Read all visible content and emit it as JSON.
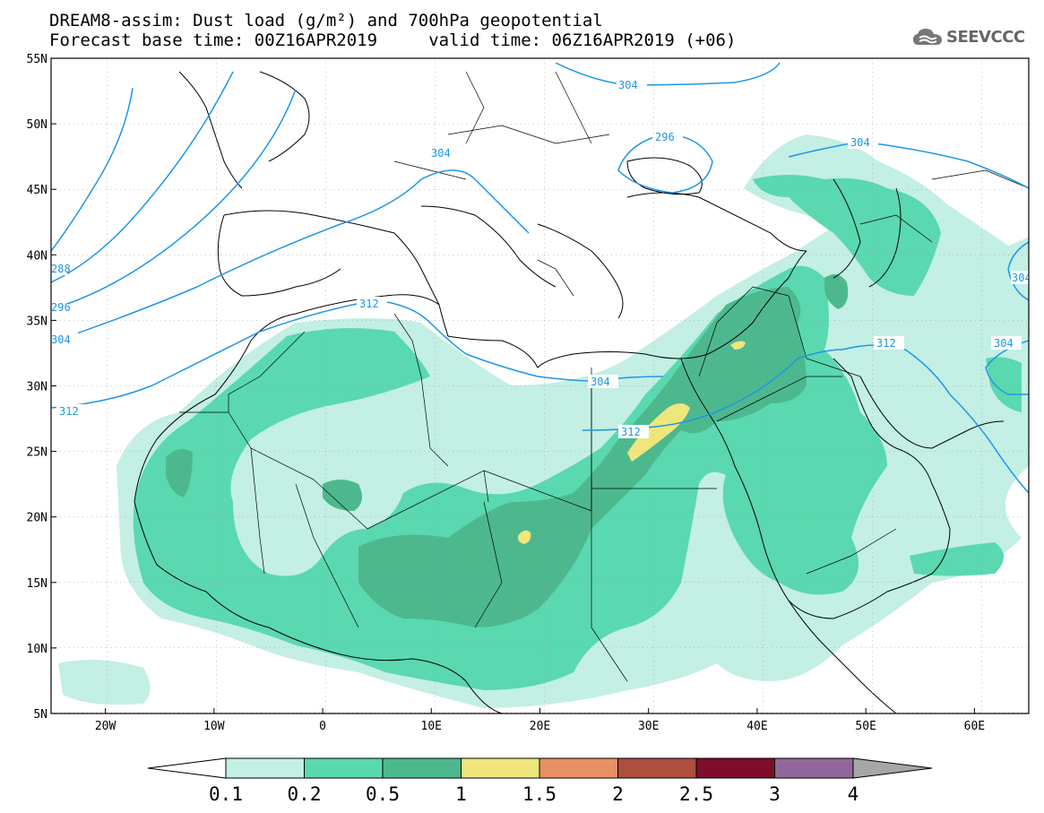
{
  "title": {
    "line1": "DREAM8-assim: Dust load (g/m²) and 700hPa geopotential",
    "line2": "Forecast base time: 00Z16APR2019     valid time: 06Z16APR2019 (+06)"
  },
  "logo": {
    "text": "SEEVCCC",
    "icon": "cloud-icon"
  },
  "axes": {
    "lat_labels": [
      "55N",
      "50N",
      "45N",
      "40N",
      "35N",
      "30N",
      "25N",
      "20N",
      "15N",
      "10N",
      "5N"
    ],
    "lon_labels": [
      "20W",
      "10W",
      "0",
      "10E",
      "20E",
      "30E",
      "40E",
      "50E",
      "60E"
    ],
    "lon_range": [
      -25,
      65
    ],
    "lat_range": [
      5,
      55
    ]
  },
  "contours": {
    "labels": [
      "304",
      "296",
      "304",
      "304",
      "288",
      "296",
      "304",
      "312",
      "312",
      "304",
      "312",
      "312",
      "304",
      "304"
    ]
  },
  "colorbar": {
    "levels": [
      "0.1",
      "0.2",
      "0.5",
      "1",
      "1.5",
      "2",
      "2.5",
      "3",
      "4"
    ],
    "colors": [
      "#c3efe4",
      "#5ad8b0",
      "#4db88e",
      "#efe67c",
      "#e88f64",
      "#ad4e3e",
      "#7e0d2b",
      "#91679a"
    ],
    "under_color": "#ffffff",
    "over_color": "#a6a6a6"
  },
  "colors": {
    "contour_line": "#1e96e6",
    "coast": "#000000",
    "frame": "#000000"
  }
}
